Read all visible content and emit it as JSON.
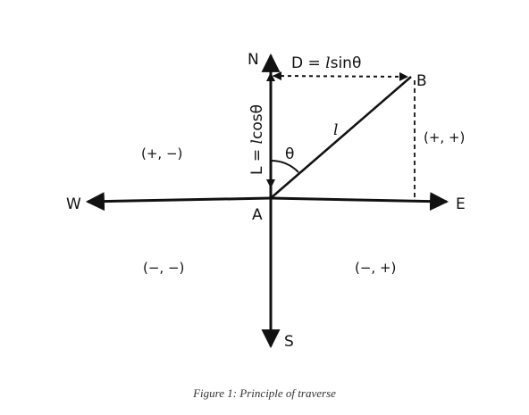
{
  "directions": {
    "north": "N",
    "south": "S",
    "east": "E",
    "west": "W"
  },
  "points": {
    "origin": "A",
    "end": "B"
  },
  "quadrants": {
    "north_west": "(+, −)",
    "north_east": "(+, +)",
    "south_west": "(−, −)",
    "south_east": "(−, +)"
  },
  "labels": {
    "departure_prefix": "D = ",
    "departure_l": "l",
    "departure_suffix": "sinθ",
    "latitude_prefix": "L = ",
    "latitude_l": "l",
    "latitude_suffix": "cosθ",
    "length": "l",
    "angle": "θ"
  },
  "caption": "Figure 1: Principle of traverse",
  "colors": {
    "line": "#111111",
    "background": "#ffffff"
  }
}
